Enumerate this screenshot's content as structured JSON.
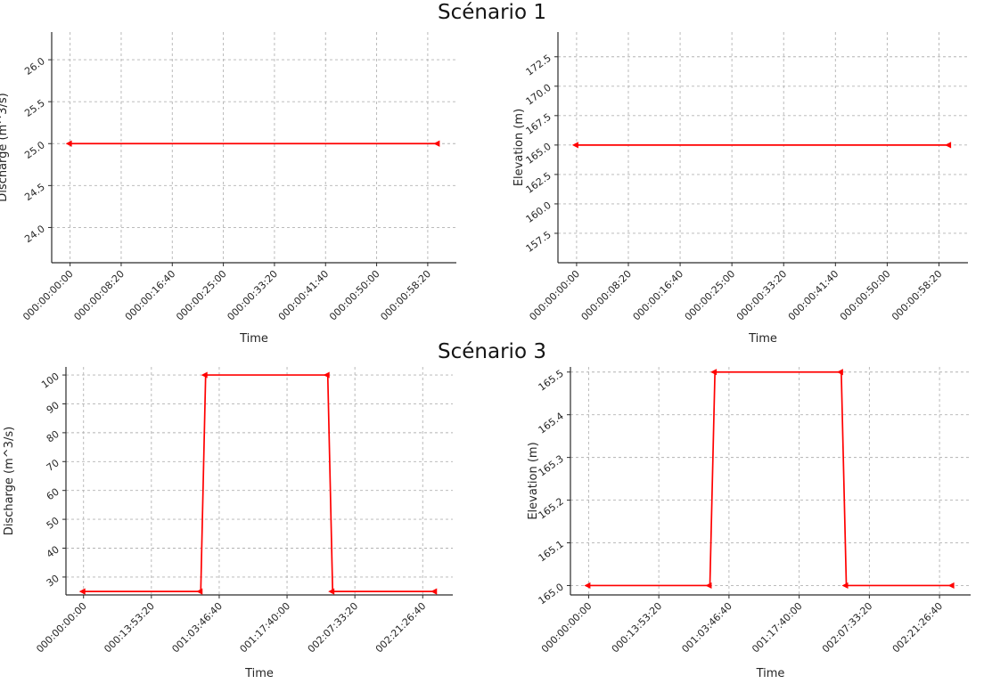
{
  "figure": {
    "background": "#ffffff",
    "sections": [
      {
        "title": "Scénario 1"
      },
      {
        "title": "Scénario 3"
      }
    ]
  },
  "chart_data": [
    {
      "id": "scenario1-discharge",
      "section_title": "Scénario 1",
      "type": "line",
      "title": "",
      "xlabel": "Time",
      "ylabel": "Discharge (m^3/s)",
      "grid": true,
      "grid_style": "dashed",
      "legend": "none",
      "line_color": "#ff0000",
      "x_tick_values": [
        0,
        500,
        1000,
        1500,
        2000,
        2500,
        3000,
        3500
      ],
      "x_tick_labels": [
        "000:00:00:00",
        "000:00:08:20",
        "000:00:16:40",
        "000:00:25:00",
        "000:00:33:20",
        "000:00:41:40",
        "000:00:50:00",
        "000:00:58:20"
      ],
      "xlim": [
        -180,
        3780
      ],
      "y_tick_values": [
        24.0,
        24.5,
        25.0,
        25.5,
        26.0
      ],
      "y_tick_labels": [
        "24.0",
        "24.5",
        "25.0",
        "25.5",
        "26.0"
      ],
      "ylim": [
        23.58,
        26.33
      ],
      "series": [
        {
          "name": "Discharge (m^3/s)",
          "x": [
            0,
            3600
          ],
          "y": [
            25.0,
            25.0
          ]
        }
      ]
    },
    {
      "id": "scenario1-elevation",
      "section_title": "Scénario 1",
      "type": "line",
      "title": "",
      "xlabel": "Time",
      "ylabel": "Elevation (m)",
      "grid": true,
      "grid_style": "dashed",
      "legend": "none",
      "line_color": "#ff0000",
      "x_tick_values": [
        0,
        500,
        1000,
        1500,
        2000,
        2500,
        3000,
        3500
      ],
      "x_tick_labels": [
        "000:00:00:00",
        "000:00:08:20",
        "000:00:16:40",
        "000:00:25:00",
        "000:00:33:20",
        "000:00:41:40",
        "000:00:50:00",
        "000:00:58:20"
      ],
      "xlim": [
        -180,
        3780
      ],
      "y_tick_values": [
        157.5,
        160.0,
        162.5,
        165.0,
        167.5,
        170.0,
        172.5
      ],
      "y_tick_labels": [
        "157.5",
        "160.0",
        "162.5",
        "165.0",
        "167.5",
        "170.0",
        "172.5"
      ],
      "ylim": [
        155.0,
        174.6
      ],
      "series": [
        {
          "name": "Elevation (m)",
          "x": [
            0,
            3600
          ],
          "y": [
            165.0,
            165.0
          ]
        }
      ]
    },
    {
      "id": "scenario3-discharge",
      "section_title": "Scénario 3",
      "type": "line",
      "title": "",
      "xlabel": "Time",
      "ylabel": "Discharge (m^3/s)",
      "grid": true,
      "grid_style": "dashed",
      "legend": "none",
      "line_color": "#ff0000",
      "x_tick_values": [
        0,
        50000,
        100000,
        150000,
        200000,
        250000
      ],
      "x_tick_labels": [
        "000:00:00:00",
        "000:13:53:20",
        "001:03:46:40",
        "001:17:40:00",
        "002:07:33:20",
        "002:21:26:40"
      ],
      "xlim": [
        -12960,
        272160
      ],
      "y_tick_values": [
        30,
        40,
        50,
        60,
        70,
        80,
        90,
        100
      ],
      "y_tick_labels": [
        "30",
        "40",
        "50",
        "60",
        "70",
        "80",
        "90",
        "100"
      ],
      "ylim": [
        23.8,
        102.8
      ],
      "series": [
        {
          "name": "Discharge (m^3/s)",
          "x": [
            0,
            86400,
            90000,
            180000,
            183600,
            259200
          ],
          "y": [
            25,
            25,
            100,
            100,
            25,
            25
          ]
        }
      ]
    },
    {
      "id": "scenario3-elevation",
      "section_title": "Scénario 3",
      "type": "line",
      "title": "",
      "xlabel": "Time",
      "ylabel": "Elevation (m)",
      "grid": true,
      "grid_style": "dashed",
      "legend": "none",
      "line_color": "#ff0000",
      "x_tick_values": [
        0,
        50000,
        100000,
        150000,
        200000,
        250000
      ],
      "x_tick_labels": [
        "000:00:00:00",
        "000:13:53:20",
        "001:03:46:40",
        "001:17:40:00",
        "002:07:33:20",
        "002:21:26:40"
      ],
      "xlim": [
        -12960,
        272160
      ],
      "y_tick_values": [
        165.0,
        165.1,
        165.2,
        165.3,
        165.4,
        165.5
      ],
      "y_tick_labels": [
        "165.0",
        "165.1",
        "165.2",
        "165.3",
        "165.4",
        "165.5"
      ],
      "ylim": [
        164.978,
        165.512
      ],
      "series": [
        {
          "name": "Elevation (m)",
          "x": [
            0,
            86400,
            90000,
            180000,
            183600,
            259200
          ],
          "y": [
            165.0,
            165.0,
            165.5,
            165.5,
            165.0,
            165.0
          ]
        }
      ]
    }
  ]
}
